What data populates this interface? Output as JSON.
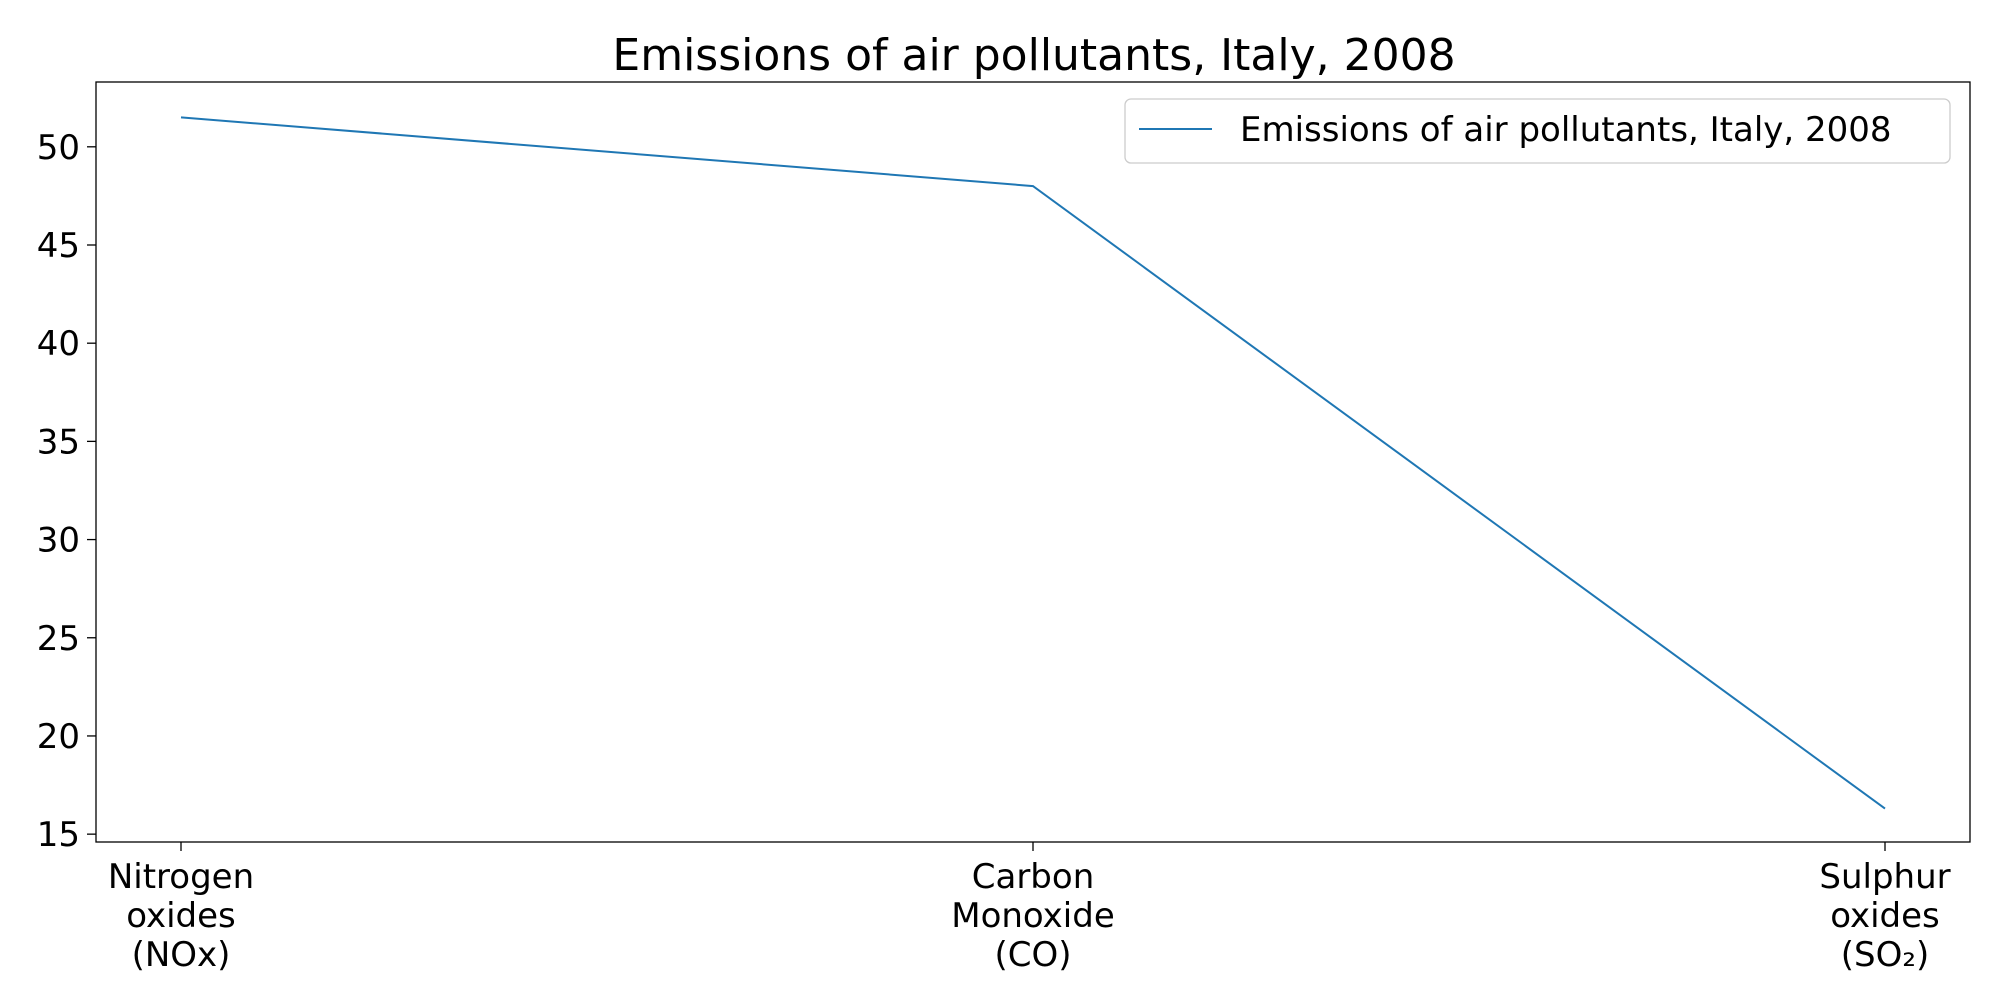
{
  "chart_data": {
    "type": "line",
    "title": "Emissions of air pollutants, Italy, 2008",
    "xlabel": "",
    "ylabel": "",
    "categories": [
      [
        "Nitrogen",
        "oxides",
        "(NOx)"
      ],
      [
        "Carbon",
        "Monoxide",
        "(CO)"
      ],
      [
        "Sulphur",
        "oxides",
        "(SO₂)"
      ]
    ],
    "series": [
      {
        "name": "Emissions of air pollutants, Italy, 2008",
        "values": [
          51.5,
          48.0,
          16.3
        ],
        "color": "#1f77b4"
      }
    ],
    "ylim": [
      14.6,
      53.3
    ],
    "yticks": [
      15,
      20,
      25,
      30,
      35,
      40,
      45,
      50
    ],
    "grid": false,
    "legend_position": "top-right"
  }
}
